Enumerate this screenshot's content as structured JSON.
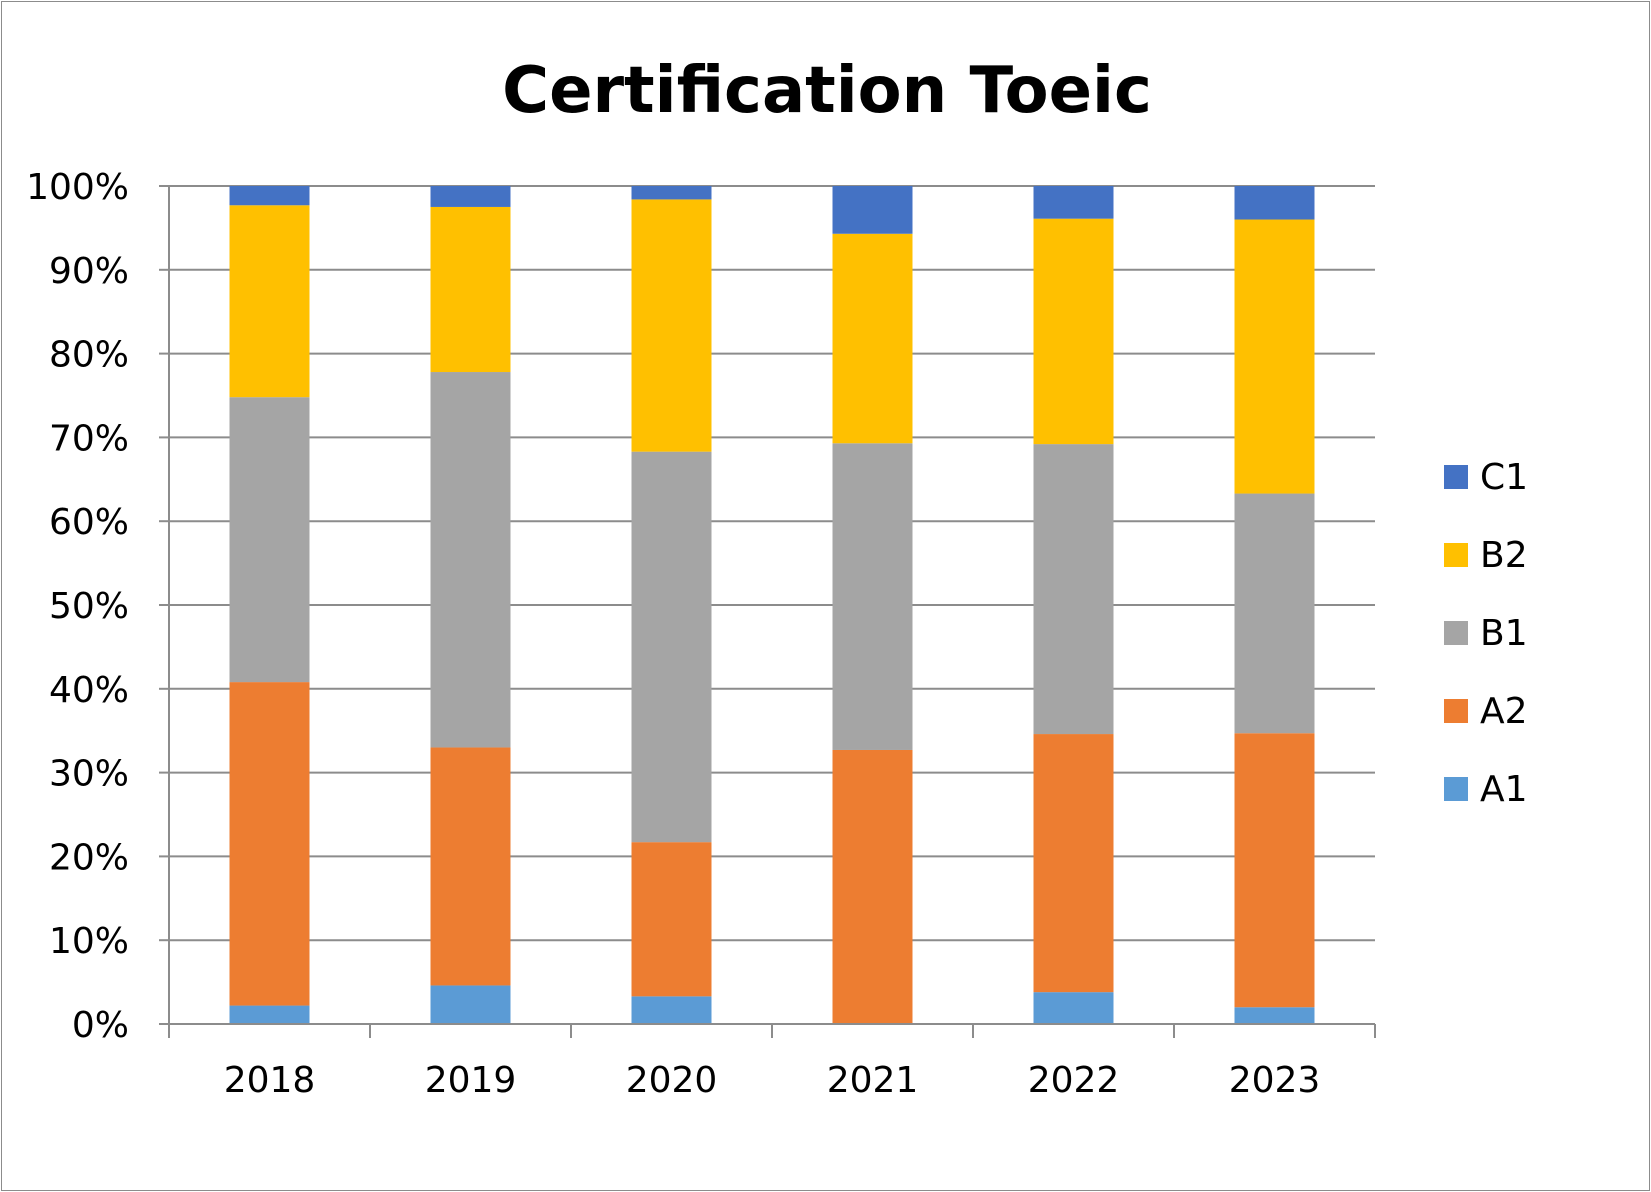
{
  "chart_data": {
    "type": "bar",
    "stacked": "percent",
    "title": "Certification Toeic",
    "xlabel": "",
    "ylabel": "",
    "categories": [
      "2018",
      "2019",
      "2020",
      "2021",
      "2022",
      "2023"
    ],
    "ylim": [
      0,
      100
    ],
    "y_ticks": [
      "0%",
      "10%",
      "20%",
      "30%",
      "40%",
      "50%",
      "60%",
      "70%",
      "80%",
      "90%",
      "100%"
    ],
    "grid": true,
    "legend_position": "right",
    "series": [
      {
        "name": "A1",
        "color": "#5b9bd5",
        "values": [
          2.2,
          4.6,
          3.3,
          0,
          3.8,
          2.0
        ]
      },
      {
        "name": "A2",
        "color": "#ed7d31",
        "values": [
          38.6,
          28.4,
          18.4,
          32.7,
          30.8,
          32.7
        ]
      },
      {
        "name": "B1",
        "color": "#a5a5a5",
        "values": [
          34.0,
          44.8,
          46.6,
          36.6,
          34.6,
          28.6
        ]
      },
      {
        "name": "B2",
        "color": "#ffc000",
        "values": [
          22.9,
          19.7,
          30.1,
          25.0,
          26.9,
          32.7
        ]
      },
      {
        "name": "C1",
        "color": "#4472c4",
        "values": [
          2.3,
          2.5,
          1.6,
          5.7,
          3.9,
          4.0
        ]
      }
    ]
  }
}
